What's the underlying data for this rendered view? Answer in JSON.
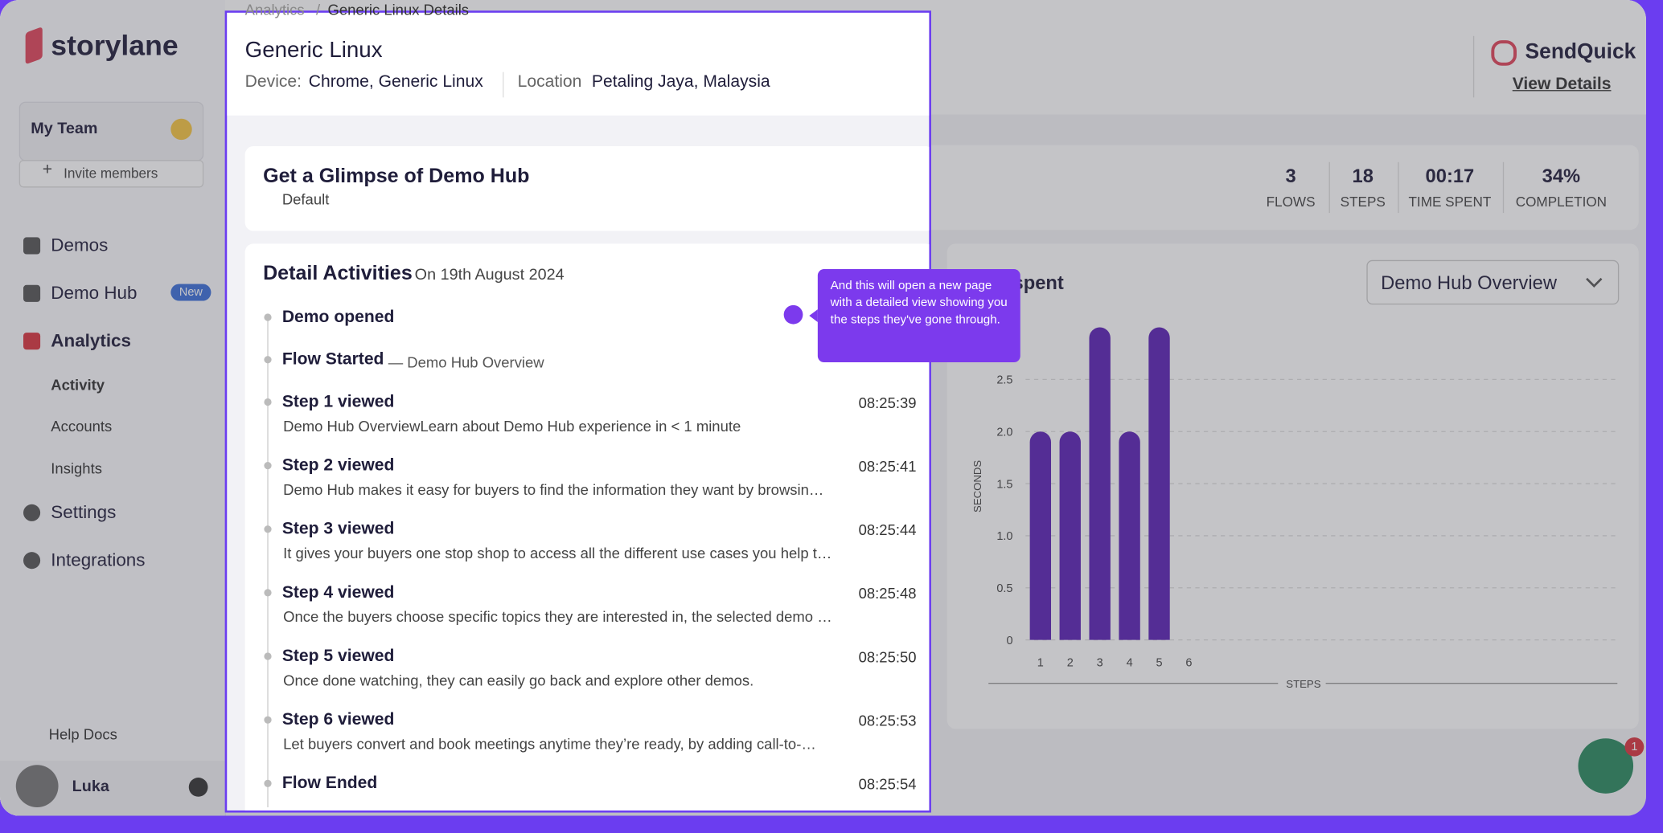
{
  "breadcrumb": [
    "Analytics",
    "Generic Linux Details"
  ],
  "sidebar": {
    "logo": "storylane",
    "team": "My Team",
    "invite": "Invite members",
    "nav": [
      {
        "label": "Demos"
      },
      {
        "label": "Demo Hub",
        "badge": "New"
      },
      {
        "label": "Analytics"
      }
    ],
    "subnav": [
      "Activity",
      "Accounts",
      "Insights"
    ],
    "nav2": [
      "Settings",
      "Integrations"
    ],
    "help": "Help Docs",
    "user": "Luka"
  },
  "header": {
    "brand": "SendQuick",
    "link": "View Details"
  },
  "stats": [
    {
      "value": 3,
      "label": "FLOWS"
    },
    {
      "value": 18,
      "label": "STEPS"
    },
    {
      "value": "00:17",
      "label": "TIME SPENT"
    },
    {
      "value": "34%",
      "label": "COMPLETION"
    }
  ],
  "chart_data": {
    "type": "bar",
    "title": "spent",
    "dropdown": "Demo Hub Overview",
    "y_label": "SECONDS",
    "x_label": "STEPS",
    "categories": [
      1,
      2,
      3,
      4,
      5,
      6
    ],
    "values": [
      2,
      2,
      3,
      2,
      3,
      null
    ],
    "color": "#5b21b6",
    "ylim": [
      0,
      3
    ],
    "yticks": [
      0,
      0.5,
      {
        "value": 1,
        "label": "1.0"
      },
      1.5,
      {
        "value": 2,
        "label": "2.0"
      },
      2.5
    ],
    "grid": true
  },
  "modal": {
    "title": "Generic Linux",
    "device_label": "Device:",
    "device": "Chrome, Generic Linux",
    "location_label": "Location",
    "location": "Petaling Jaya, Malaysia",
    "demo_title": "Get a Glimpse of Demo Hub",
    "demo_link": "Default",
    "activities_title": "Detail Activities",
    "activities_date": "On 19th August 2024",
    "events": [
      {
        "title": "Demo opened"
      },
      {
        "title": "Flow Started",
        "sub": "— Demo Hub Overview"
      },
      {
        "title": "Step 1 viewed",
        "time": "08:25:39",
        "desc": "Demo Hub OverviewLearn about Demo Hub experience in < 1 minute"
      },
      {
        "title": "Step 2 viewed",
        "time": "08:25:41",
        "desc": "Demo Hub makes it easy for buyers to find the information they want by browsin…"
      },
      {
        "title": "Step 3 viewed",
        "time": "08:25:44",
        "desc": "It gives your buyers one stop shop to access all the different use cases you help t…"
      },
      {
        "title": "Step 4 viewed",
        "time": "08:25:48",
        "desc": "Once the buyers choose specific topics they are interested in, the selected demo …"
      },
      {
        "title": "Step 5 viewed",
        "time": "08:25:50",
        "desc": "Once done watching, they can easily go back and explore other demos."
      },
      {
        "title": "Step 6 viewed",
        "time": "08:25:53",
        "desc": "Let buyers convert and book meetings anytime they’re ready, by adding call-to-…"
      },
      {
        "title": "Flow Ended",
        "time": "08:25:54"
      }
    ]
  },
  "tooltip": "And this will open a new page with a detailed view showing you the steps they've gone through.",
  "chat_badge": 1
}
